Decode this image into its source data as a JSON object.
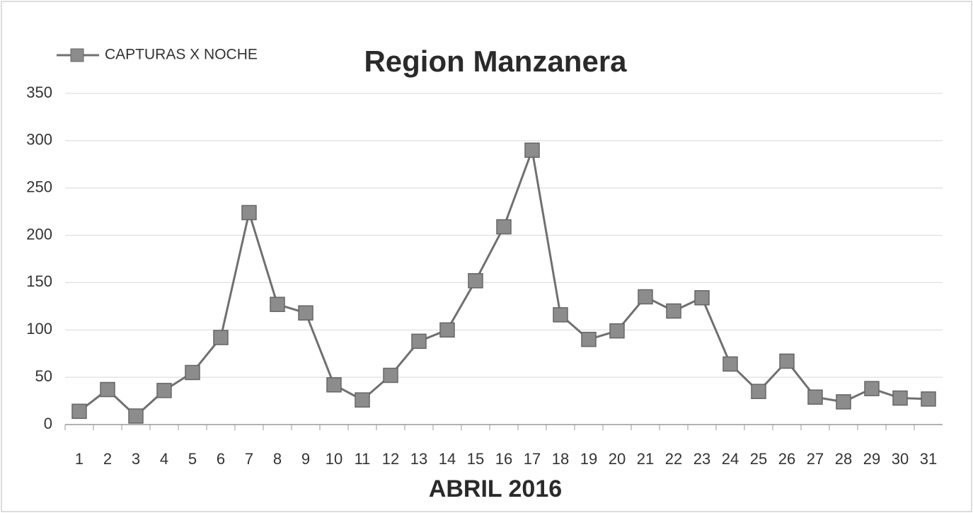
{
  "chart_data": {
    "type": "line",
    "title": "Region Manzanera",
    "x_label": "ABRIL 2016",
    "categories": [
      "1",
      "2",
      "3",
      "4",
      "5",
      "6",
      "7",
      "8",
      "9",
      "10",
      "11",
      "12",
      "13",
      "14",
      "15",
      "16",
      "17",
      "18",
      "19",
      "20",
      "21",
      "22",
      "23",
      "24",
      "25",
      "26",
      "27",
      "28",
      "29",
      "30",
      "31"
    ],
    "series": [
      {
        "name": "CAPTURAS X NOCHE",
        "color": "#707070",
        "values": [
          14,
          37,
          9,
          36,
          55,
          92,
          224,
          127,
          118,
          42,
          26,
          52,
          88,
          100,
          152,
          209,
          290,
          116,
          90,
          99,
          135,
          120,
          134,
          64,
          35,
          67,
          29,
          24,
          38,
          28,
          27
        ]
      }
    ],
    "ylim": [
      0,
      350
    ],
    "yticks": [
      0,
      50,
      100,
      150,
      200,
      250,
      300,
      350
    ],
    "grid": true,
    "legend": "top-left"
  }
}
